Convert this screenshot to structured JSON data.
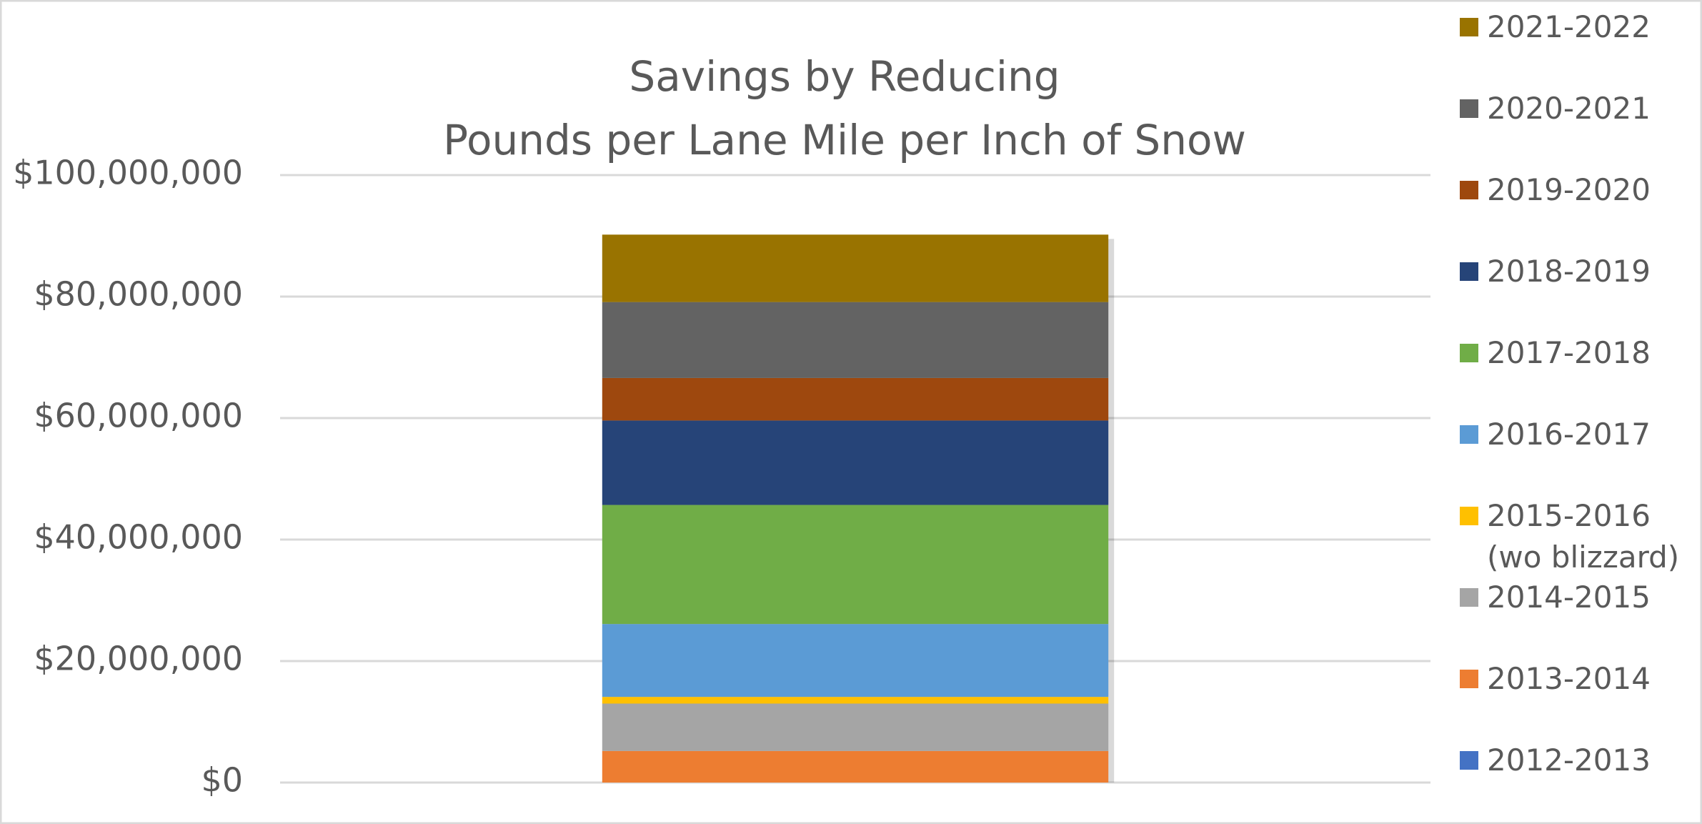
{
  "chart_data": {
    "type": "stacked_bar",
    "title": "Savings by Reducing",
    "subtitle": "Pounds per Lane Mile per Inch of Snow",
    "categories": [
      null
    ],
    "series": [
      {
        "name": "2012-2013",
        "color": "#4472c4",
        "values": [
          0
        ]
      },
      {
        "name": "2013-2014",
        "color": "#ed7d31",
        "values": [
          5200000
        ]
      },
      {
        "name": "2014-2015",
        "color": "#a5a5a5",
        "values": [
          7800000
        ]
      },
      {
        "name": "2015-2016 (wo blizzard)",
        "color": "#ffc000",
        "values": [
          1100000
        ]
      },
      {
        "name": "2016-2017",
        "color": "#5b9bd5",
        "values": [
          12000000
        ]
      },
      {
        "name": "2017-2018",
        "color": "#70ad47",
        "values": [
          19600000
        ]
      },
      {
        "name": "2018-2019",
        "color": "#264478",
        "values": [
          13900000
        ]
      },
      {
        "name": "2019-2020",
        "color": "#9e480e",
        "values": [
          7000000
        ]
      },
      {
        "name": "2020-2021",
        "color": "#636363",
        "values": [
          12500000
        ]
      },
      {
        "name": "2021-2022",
        "color": "#997300",
        "values": [
          11100000
        ]
      }
    ],
    "ylim": [
      0,
      100000000
    ],
    "yticks": [
      {
        "value": 0,
        "label": "$0"
      },
      {
        "value": 20000000,
        "label": "$20,000,000"
      },
      {
        "value": 40000000,
        "label": "$40,000,000"
      },
      {
        "value": 60000000,
        "label": "$60,000,000"
      },
      {
        "value": 80000000,
        "label": "$80,000,000"
      },
      {
        "value": 100000000,
        "label": "$100,000,000"
      }
    ],
    "grid": true,
    "legend": "right"
  }
}
